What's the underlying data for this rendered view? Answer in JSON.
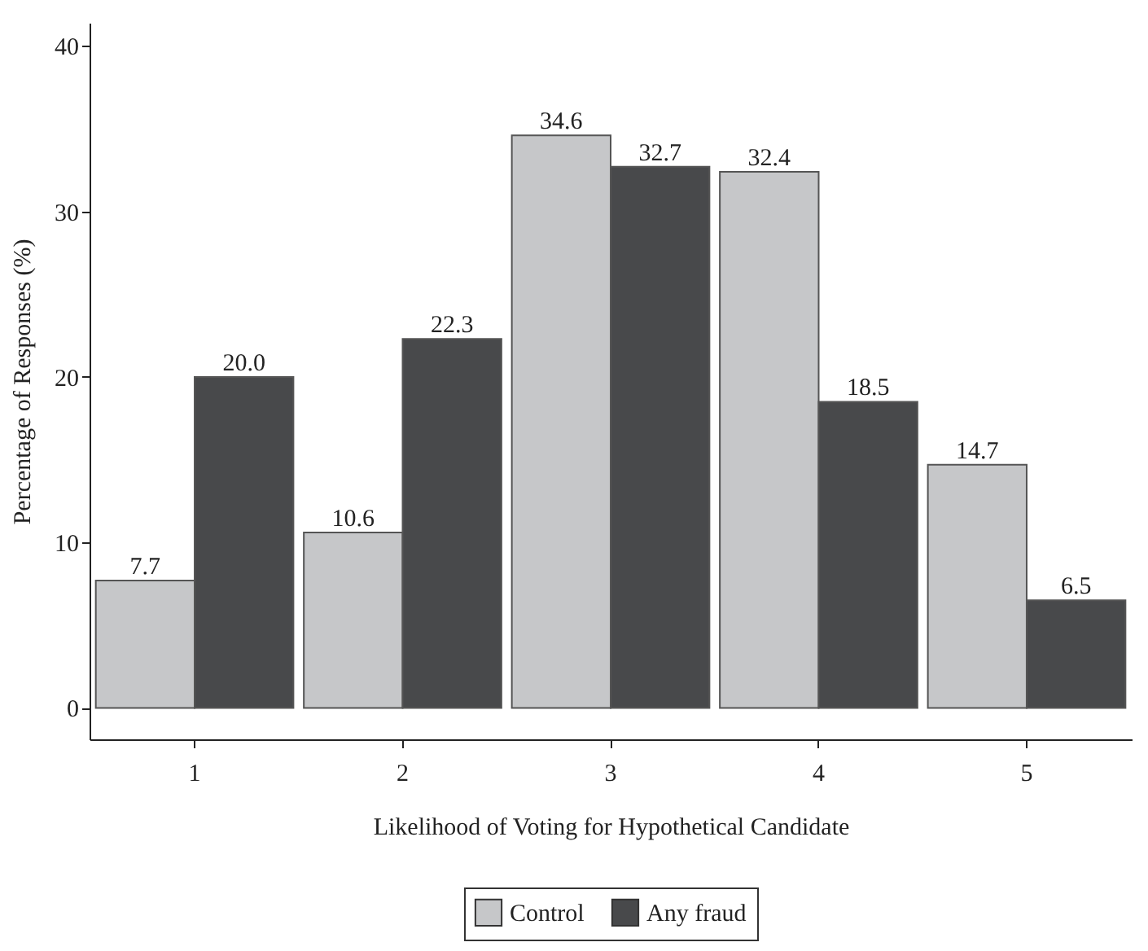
{
  "chart_data": {
    "type": "bar",
    "xlabel": "Likelihood of Voting for Hypothetical Candidate",
    "ylabel": "Percentage of Responses (%)",
    "categories": [
      "1",
      "2",
      "3",
      "4",
      "5"
    ],
    "series": [
      {
        "name": "Control",
        "color": "#c6c7c9",
        "values": [
          7.7,
          10.6,
          34.6,
          32.4,
          14.7
        ],
        "value_labels": [
          "7.7",
          "10.6",
          "34.6",
          "32.4",
          "14.7"
        ]
      },
      {
        "name": "Any fraud",
        "color": "#48494b",
        "values": [
          20.0,
          22.3,
          32.7,
          18.5,
          6.5
        ],
        "value_labels": [
          "20.0",
          "22.3",
          "32.7",
          "18.5",
          "6.5"
        ]
      }
    ],
    "ylim": [
      -1.9,
      41.4
    ],
    "yticks": [
      0,
      10,
      20,
      30,
      40
    ],
    "grid": false,
    "legend": "bottom"
  }
}
